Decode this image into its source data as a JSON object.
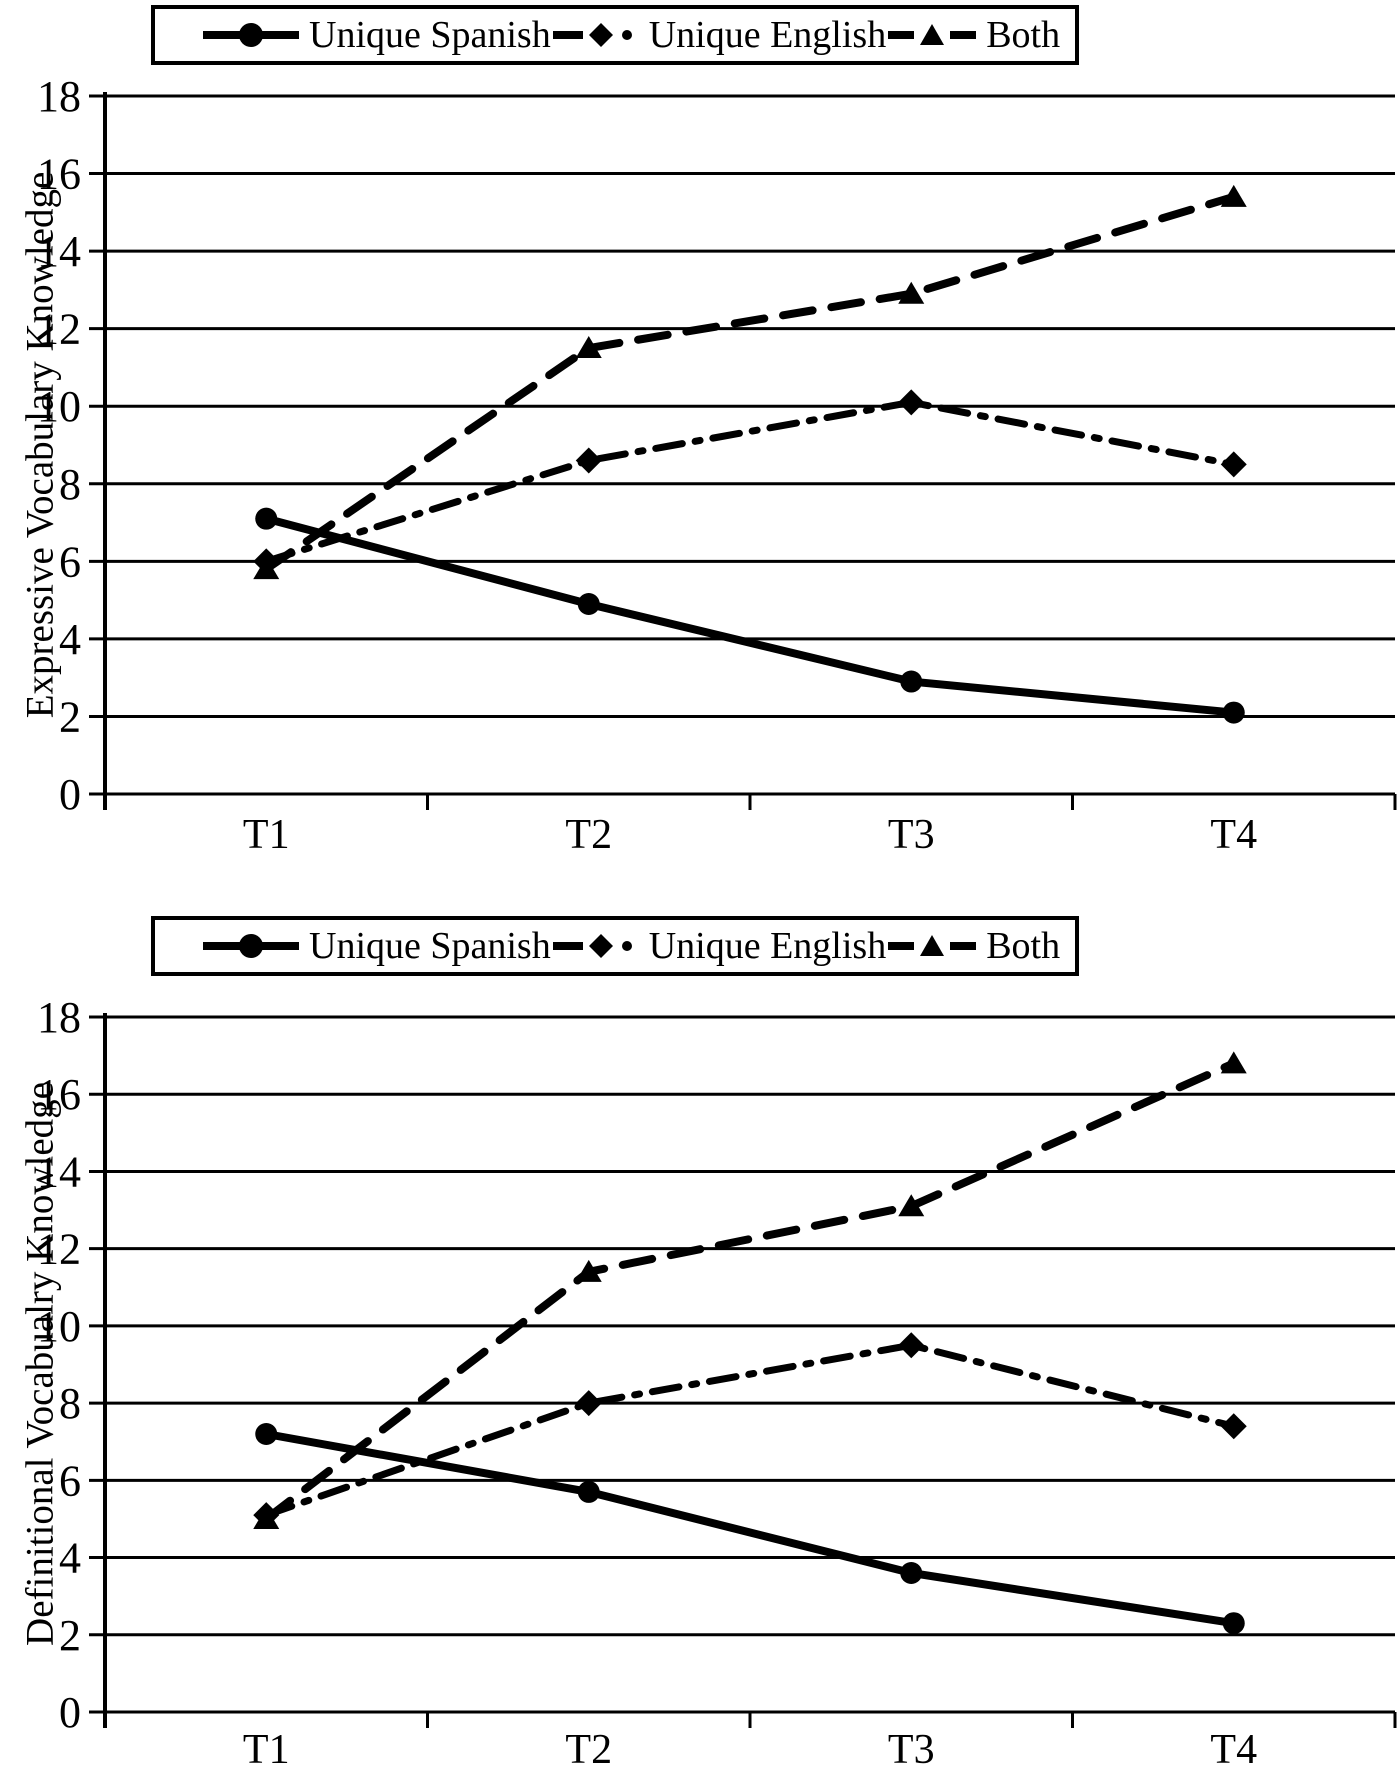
{
  "figure": {
    "background": "#ffffff",
    "line_color": "#000000",
    "legend_labels": [
      "Unique Spanish",
      "Unique English",
      "Both"
    ]
  },
  "chart_data": [
    {
      "type": "line",
      "ylabel": "Expressive Vocabulary Knowledge",
      "categories": [
        "T1",
        "T2",
        "T3",
        "T4"
      ],
      "ylim": [
        0,
        18
      ],
      "ytick_step": 2,
      "grid": "horizontal",
      "legend_position": "top",
      "series": [
        {
          "name": "Unique Spanish",
          "marker": "circle",
          "line_style": "solid",
          "values": [
            7.1,
            4.9,
            2.9,
            2.1
          ]
        },
        {
          "name": "Unique English",
          "marker": "diamond",
          "line_style": "dashdot",
          "values": [
            6.0,
            8.6,
            10.1,
            8.5
          ]
        },
        {
          "name": "Both",
          "marker": "triangle",
          "line_style": "dashed",
          "values": [
            5.8,
            11.5,
            12.9,
            15.4
          ]
        }
      ]
    },
    {
      "type": "line",
      "ylabel": "Definitional Vocabualry Knowledge",
      "categories": [
        "T1",
        "T2",
        "T3",
        "T4"
      ],
      "ylim": [
        0,
        18
      ],
      "ytick_step": 2,
      "grid": "horizontal",
      "legend_position": "top",
      "series": [
        {
          "name": "Unique Spanish",
          "marker": "circle",
          "line_style": "solid",
          "values": [
            7.2,
            5.7,
            3.6,
            2.3
          ]
        },
        {
          "name": "Unique English",
          "marker": "diamond",
          "line_style": "dashdot",
          "values": [
            5.1,
            8.0,
            9.5,
            7.4
          ]
        },
        {
          "name": "Both",
          "marker": "triangle",
          "line_style": "dashed",
          "values": [
            5.0,
            11.4,
            13.1,
            16.8
          ]
        }
      ]
    }
  ]
}
